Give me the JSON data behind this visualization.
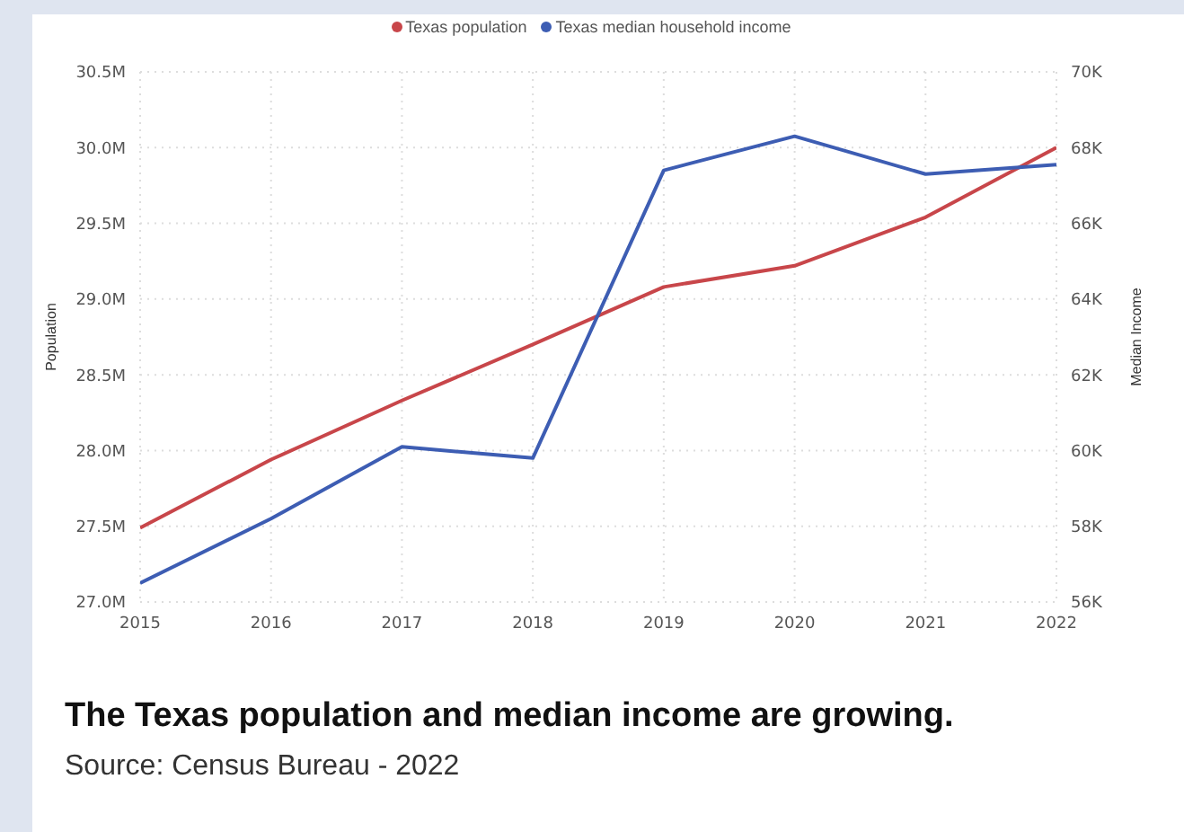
{
  "chart_data": {
    "type": "line",
    "title": "The Texas population and median income are growing.",
    "annotations": [
      "Source: Census Bureau - 2022"
    ],
    "ylabel": "Population",
    "y2label": "Median Income",
    "x": [
      2015,
      2016,
      2017,
      2018,
      2019,
      2020,
      2021,
      2022
    ],
    "xlim": [
      2015,
      2022
    ],
    "xticks": [
      2015,
      2016,
      2017,
      2018,
      2019,
      2020,
      2021,
      2022
    ],
    "ylim": [
      27000000,
      30500000
    ],
    "yticks": [
      {
        "value": 27000000,
        "label": "27.0M"
      },
      {
        "value": 27500000,
        "label": "27.5M"
      },
      {
        "value": 28000000,
        "label": "28.0M"
      },
      {
        "value": 28500000,
        "label": "28.5M"
      },
      {
        "value": 29000000,
        "label": "29.0M"
      },
      {
        "value": 29500000,
        "label": "29.5M"
      },
      {
        "value": 30000000,
        "label": "30.0M"
      },
      {
        "value": 30500000,
        "label": "30.5M"
      }
    ],
    "y2lim": [
      56000,
      70000
    ],
    "y2ticks": [
      {
        "value": 56000,
        "label": "56K"
      },
      {
        "value": 58000,
        "label": "58K"
      },
      {
        "value": 60000,
        "label": "60K"
      },
      {
        "value": 62000,
        "label": "62K"
      },
      {
        "value": 64000,
        "label": "64K"
      },
      {
        "value": 66000,
        "label": "66K"
      },
      {
        "value": 68000,
        "label": "68K"
      },
      {
        "value": 70000,
        "label": "70K"
      }
    ],
    "series": [
      {
        "name": "Texas population",
        "color": "#c8464a",
        "values": [
          27490000,
          27940000,
          28330000,
          28700000,
          29080000,
          29220000,
          29540000,
          30000000
        ]
      },
      {
        "name": "Texas median household income",
        "color": "#3d5db3",
        "axis": "y2",
        "values": [
          56500,
          58200,
          60100,
          59800,
          67400,
          68300,
          67300,
          67550
        ]
      }
    ],
    "grid": true,
    "legend": "top",
    "marker": "none",
    "line_style": "solid"
  }
}
